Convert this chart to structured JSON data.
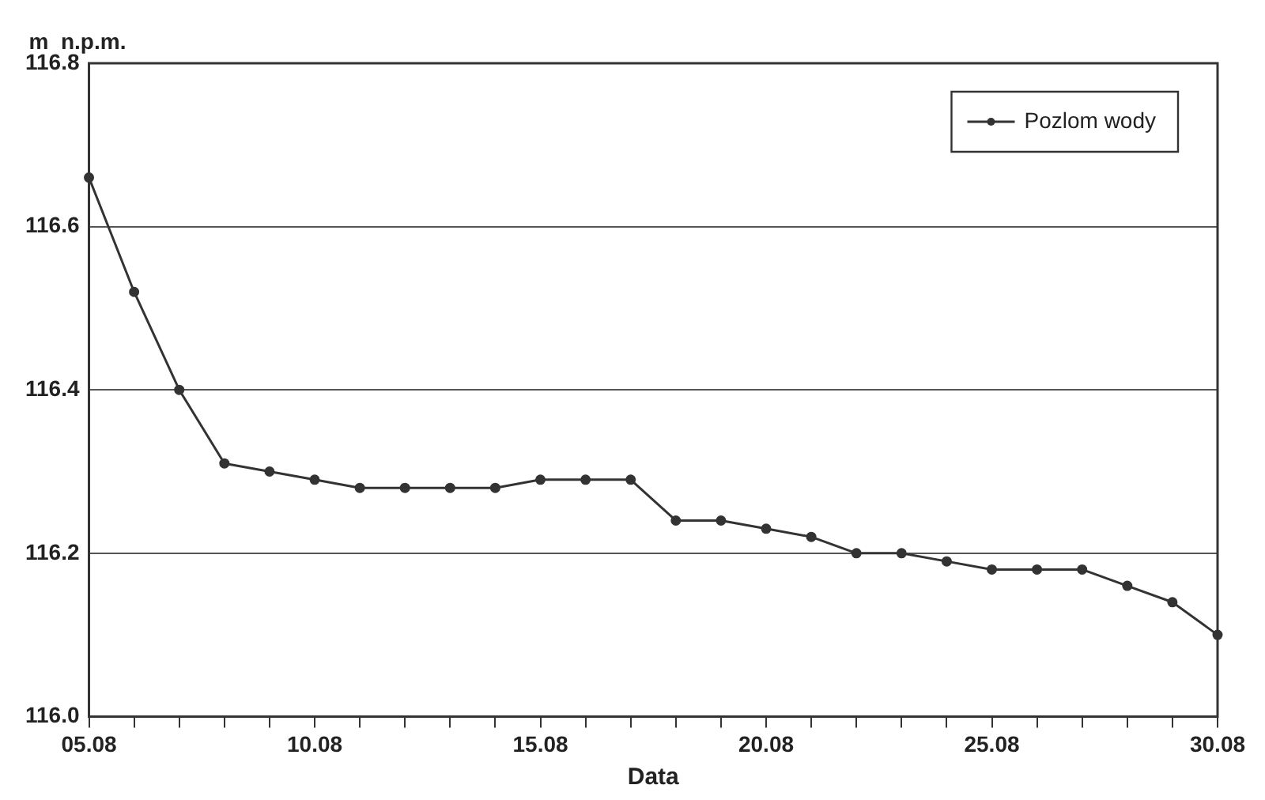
{
  "chart_data": {
    "type": "line",
    "xlabel": "Data",
    "ylabel": "m  n.p.m.",
    "categories": [
      "05.08",
      null,
      null,
      null,
      null,
      "10.08",
      null,
      null,
      null,
      null,
      "15.08",
      null,
      null,
      null,
      null,
      "20.08",
      null,
      null,
      null,
      null,
      "25.08",
      null,
      null,
      null,
      null,
      "30.08"
    ],
    "series": [
      {
        "name": "Pozlom wody",
        "color": "#333333",
        "values": [
          116.66,
          116.52,
          116.4,
          116.31,
          116.3,
          116.29,
          116.28,
          116.28,
          116.28,
          116.28,
          116.29,
          116.29,
          116.29,
          116.24,
          116.24,
          116.23,
          116.22,
          116.2,
          116.2,
          116.19,
          116.18,
          116.18,
          116.18,
          116.16,
          116.14,
          116.1
        ]
      }
    ],
    "ylim": [
      116.0,
      116.8
    ],
    "yticks": [
      {
        "value": 116.0,
        "label": "116.0"
      },
      116.2,
      116.4,
      116.6,
      116.8
    ],
    "grid": "y",
    "legend": "top right",
    "marker": "circle",
    "line_style": "solid"
  }
}
